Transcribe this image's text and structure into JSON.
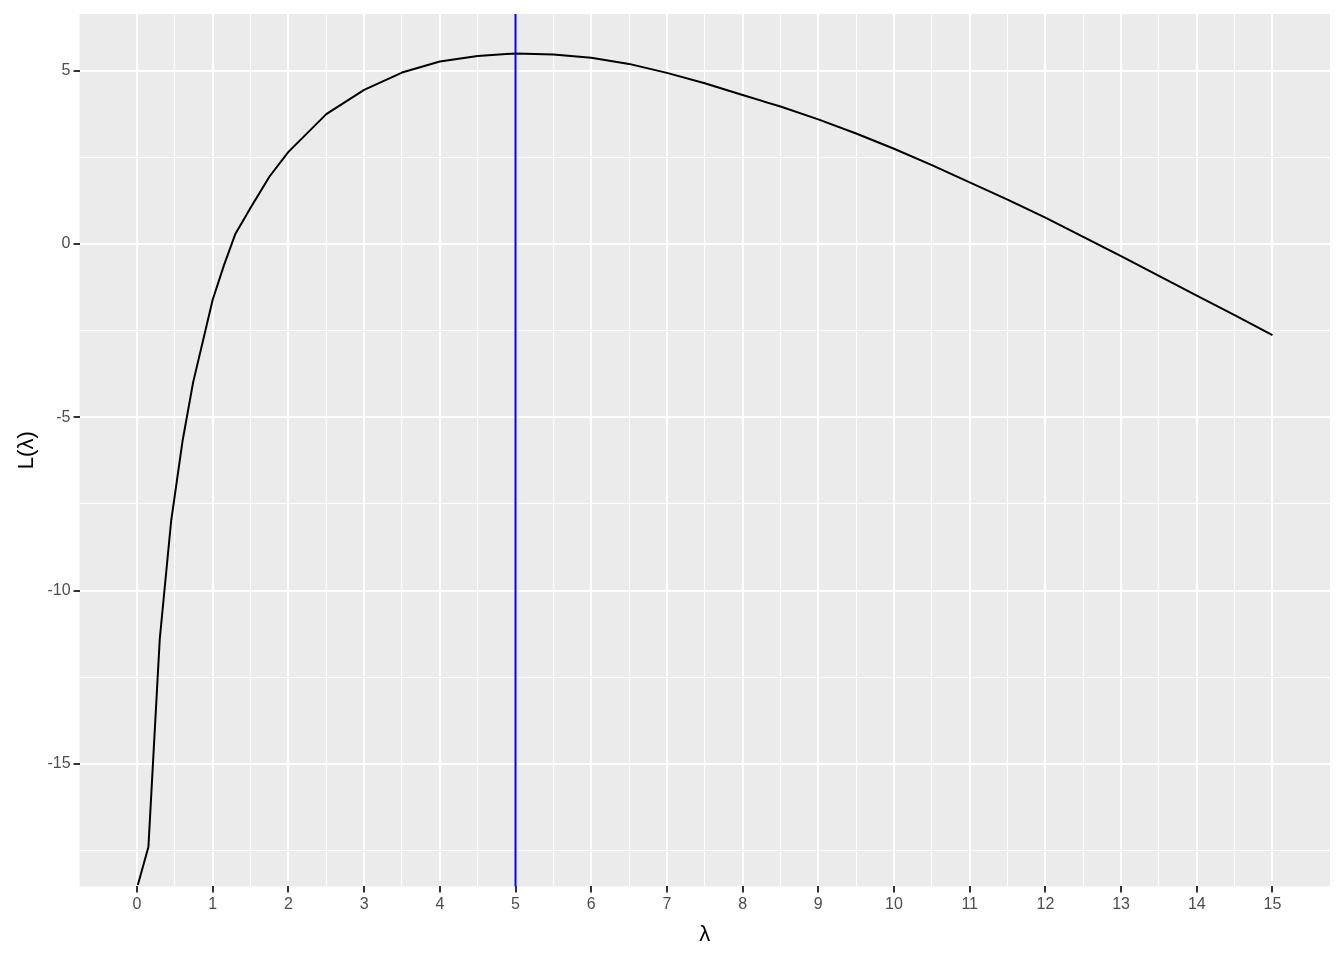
{
  "chart_data": {
    "type": "line",
    "xlabel": "λ",
    "ylabel": "L(λ)",
    "xlim": [
      -0.76,
      15.76
    ],
    "ylim": [
      -18.54,
      6.64
    ],
    "xticks": [
      0,
      {
        "value": 0.5,
        "label": null
      },
      1,
      {
        "value": 1.5,
        "label": null
      },
      2,
      {
        "value": 2.5,
        "label": null
      },
      3,
      {
        "value": 3.5,
        "label": null
      },
      4,
      {
        "value": 4.5,
        "label": null
      },
      5,
      {
        "value": 5.5,
        "label": null
      },
      6,
      {
        "value": 6.5,
        "label": null
      },
      7,
      {
        "value": 7.5,
        "label": null
      },
      8,
      {
        "value": 8.5,
        "label": null
      },
      9,
      {
        "value": 9.5,
        "label": null
      },
      10,
      {
        "value": 10.5,
        "label": null
      },
      11,
      {
        "value": 11.5,
        "label": null
      },
      12,
      {
        "value": 12.5,
        "label": null
      },
      13,
      {
        "value": 13.5,
        "label": null
      },
      14,
      {
        "value": 14.5,
        "label": null
      },
      15
    ],
    "yticks": [
      {
        "value": -17.5,
        "label": null
      },
      -15,
      {
        "value": -12.5,
        "label": null
      },
      -10,
      {
        "value": -7.5,
        "label": null
      },
      -5,
      {
        "value": -2.5,
        "label": null
      },
      0,
      {
        "value": 2.5,
        "label": null
      },
      5
    ],
    "grid": true,
    "marker": "none",
    "line_style": "solid",
    "series": [
      {
        "color": "#000000",
        "x": [
          0.01,
          0.15,
          0.3,
          0.45,
          0.6,
          0.74,
          1,
          1.15,
          1.3,
          1.5,
          1.75,
          2,
          2.5,
          3,
          3.5,
          4,
          4.5,
          5,
          5.5,
          6,
          6.5,
          7,
          7.5,
          8,
          8.5,
          9,
          9.5,
          10,
          10.5,
          11,
          11.5,
          12,
          12.5,
          13,
          13.5,
          14,
          14.5,
          15
        ],
        "values": [
          -18.5,
          -17.4,
          -11.4,
          -8.0,
          -5.7,
          -4.0,
          -1.6,
          -0.6,
          0.3,
          1.05,
          1.95,
          2.66,
          3.75,
          4.45,
          4.95,
          5.27,
          5.43,
          5.5,
          5.47,
          5.38,
          5.2,
          4.94,
          4.64,
          4.3,
          3.97,
          3.6,
          3.19,
          2.75,
          2.28,
          1.78,
          1.28,
          0.76,
          0.21,
          -0.35,
          -0.92,
          -1.49,
          -2.05,
          -2.63
        ]
      }
    ],
    "ref_lines": [
      {
        "axis": "x",
        "value": 5,
        "color": "#0000ff"
      }
    ]
  }
}
